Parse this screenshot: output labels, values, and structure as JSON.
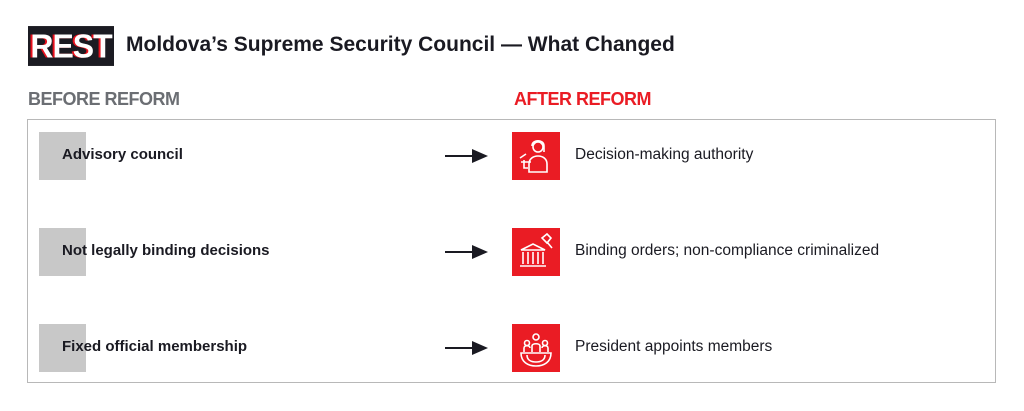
{
  "logo": "REST",
  "title": "Moldova’s Supreme Security Council — What Changed",
  "headers": {
    "before": "BEFORE REFORM",
    "after": "AFTER REFORM"
  },
  "colors": {
    "accent": "#ea1c24",
    "before_gray": "#6b6e73"
  },
  "rows": [
    {
      "before": "Advisory council",
      "after": "Decision-making authority",
      "icon": "judge-gavel-icon"
    },
    {
      "before": "Not legally binding decisions",
      "after": "Binding orders; non-compliance criminalized",
      "icon": "courthouse-gavel-icon"
    },
    {
      "before": "Fixed official membership",
      "after": "President appoints members",
      "icon": "group-members-icon"
    }
  ]
}
